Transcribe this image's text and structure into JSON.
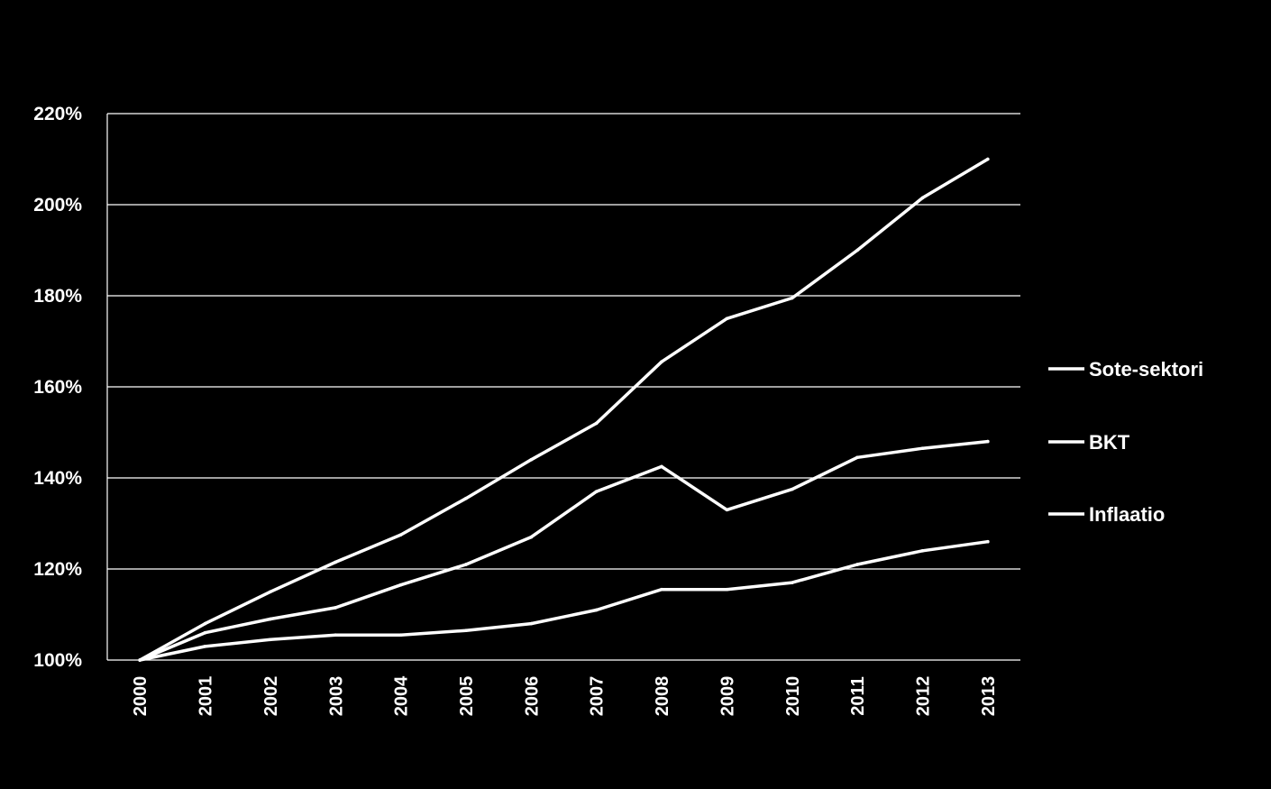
{
  "chart_data": {
    "type": "line",
    "title": "",
    "xlabel": "",
    "ylabel": "",
    "categories": [
      "2000",
      "2001",
      "2002",
      "2003",
      "2004",
      "2005",
      "2006",
      "2007",
      "2008",
      "2009",
      "2010",
      "2011",
      "2012",
      "2013"
    ],
    "yticks": [
      "100%",
      "120%",
      "140%",
      "160%",
      "180%",
      "200%",
      "220%"
    ],
    "ylim": [
      100,
      220
    ],
    "grid": true,
    "legend_position": "right",
    "colors": {
      "background": "#000000",
      "line": "#ffffff",
      "grid": "#ffffff",
      "text": "#ffffff"
    },
    "series": [
      {
        "name": "Sote-sektori",
        "values": [
          100,
          108,
          115,
          121.5,
          127.5,
          135.5,
          144,
          152,
          165.5,
          175,
          179.5,
          190,
          201.5,
          210
        ]
      },
      {
        "name": "BKT",
        "values": [
          100,
          106,
          109,
          111.5,
          116.5,
          121,
          127,
          137,
          142.5,
          133,
          137.5,
          144.5,
          146.5,
          148
        ]
      },
      {
        "name": "Inflaatio",
        "values": [
          100,
          103,
          104.5,
          105.5,
          105.5,
          106.5,
          108,
          111,
          115.5,
          115.5,
          117,
          121,
          124,
          126
        ]
      }
    ]
  }
}
